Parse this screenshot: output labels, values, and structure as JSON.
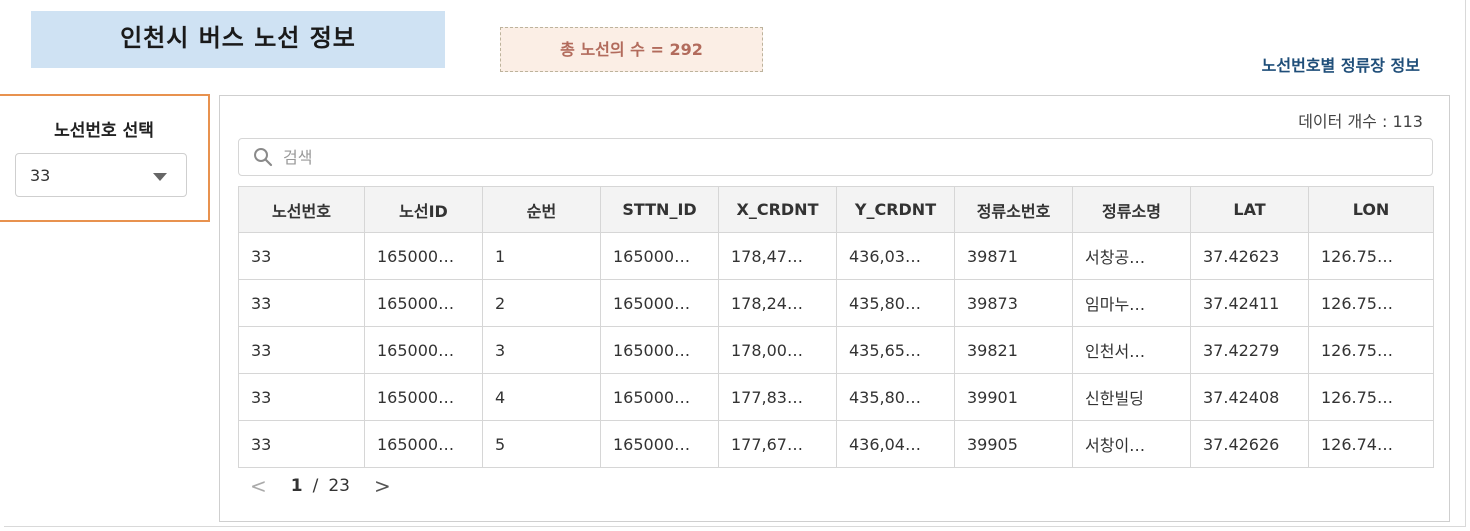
{
  "header": {
    "title": "인천시 버스 노선 정보",
    "route_count_text": "총 노선의 수 = 292",
    "detail_title": "노선번호별 정류장 정보"
  },
  "sidebar": {
    "select_label": "노선번호 선택",
    "selected_route": "33"
  },
  "main": {
    "data_count_text": "데이터 개수 : 113",
    "search_placeholder": "검색",
    "columns": [
      "노선번호",
      "노선ID",
      "순번",
      "STTN_ID",
      "X_CRDNT",
      "Y_CRDNT",
      "정류소번호",
      "정류소명",
      "LAT",
      "LON"
    ],
    "rows": [
      [
        "33",
        "165000…",
        "1",
        "165000…",
        "178,47…",
        "436,03…",
        "39871",
        "서창공…",
        "37.42623",
        "126.75…"
      ],
      [
        "33",
        "165000…",
        "2",
        "165000…",
        "178,24…",
        "435,80…",
        "39873",
        "임마누…",
        "37.42411",
        "126.75…"
      ],
      [
        "33",
        "165000…",
        "3",
        "165000…",
        "178,00…",
        "435,65…",
        "39821",
        "인천서…",
        "37.42279",
        "126.75…"
      ],
      [
        "33",
        "165000…",
        "4",
        "165000…",
        "177,83…",
        "435,80…",
        "39901",
        "신한빌딩",
        "37.42408",
        "126.75…"
      ],
      [
        "33",
        "165000…",
        "5",
        "165000…",
        "177,67…",
        "436,04…",
        "39905",
        "서창이…",
        "37.42626",
        "126.74…"
      ]
    ],
    "pagination": {
      "prev": "<",
      "current": "1",
      "separator": "/",
      "total": "23",
      "next": ">"
    }
  },
  "colors": {
    "title_bg": "#cfe2f3",
    "count_bg": "#fbeee5",
    "count_text": "#b26b5c",
    "link_text": "#1f4e79",
    "panel_border": "#e8924f"
  }
}
